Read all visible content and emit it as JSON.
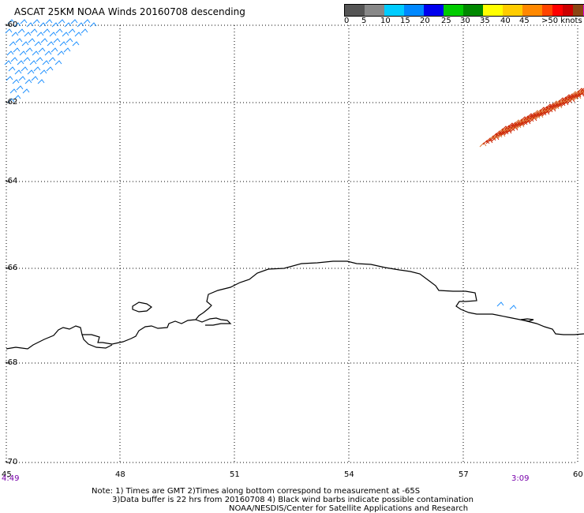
{
  "title": "ASCAT 25KM NOAA Winds 20160708 descending",
  "colorbar": {
    "colors": [
      "#555555",
      "#888888",
      "#00ccff",
      "#0088ff",
      "#0000ee",
      "#00cc00",
      "#008800",
      "#ffff00",
      "#ffcc00",
      "#ff8800",
      "#ff4400",
      "#ff0000",
      "#cc0000",
      "#8b4513",
      "#dd00dd",
      "#aa00aa",
      "#660099"
    ],
    "labels": [
      "0",
      "5",
      "10",
      "15",
      "20",
      "25",
      "30",
      "35",
      "40",
      "45",
      ">50 knots"
    ]
  },
  "lat_labels": [
    "-60",
    "-62",
    "-64",
    "-66",
    "-68",
    "-70"
  ],
  "lon_labels": [
    "45",
    "48",
    "51",
    "54",
    "57",
    "60"
  ],
  "times": {
    "left": "4:49",
    "right": "3:09"
  },
  "notes": {
    "line1": "Note: 1) Times are GMT 2)Times along bottom correspond to measurement at -65S",
    "line2": "3)Data buffer is 22 hrs from 20160708 4) Black wind barbs indicate possible contamination",
    "line3": "NOAA/NESDIS/Center for Satellite Applications and Research"
  },
  "map": {
    "lon_range": [
      45,
      60
    ],
    "lat_range": [
      -60,
      -70
    ],
    "grid": "dotted",
    "barb_colors": {
      "west": "#1e90ff",
      "east_dark": "#cc2200",
      "east_light": "#dd7733"
    }
  }
}
